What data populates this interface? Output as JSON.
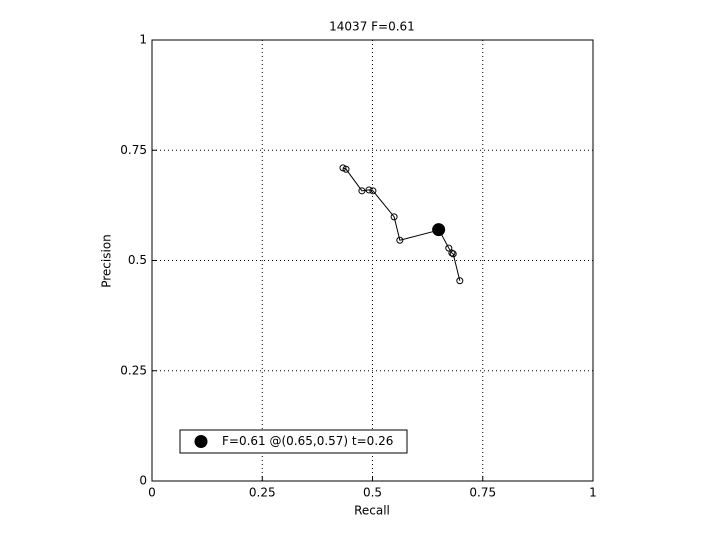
{
  "chart_data": {
    "type": "line",
    "title": "14037 F=0.61",
    "x_label": "Recall",
    "y_label": "Precision",
    "xlim": [
      0,
      1
    ],
    "ylim": [
      0,
      1
    ],
    "xticks": [
      0,
      0.25,
      0.5,
      0.75,
      1
    ],
    "yticks": [
      0,
      0.25,
      0.5,
      0.75,
      1
    ],
    "grid": true,
    "legend_location": "lower left",
    "series": [
      {
        "color": "#000000",
        "x": [
          0.433,
          0.44,
          0.476,
          0.492,
          0.501,
          0.549,
          0.562,
          0.651,
          0.673,
          0.68,
          0.683,
          0.698
        ],
        "values": [
          0.71,
          0.707,
          0.658,
          0.66,
          0.658,
          0.599,
          0.546,
          0.569,
          0.528,
          0.517,
          0.515,
          0.454
        ]
      },
      {
        "name": "F=0.61 @(0.65,0.57) t=0.26",
        "color": "#000000",
        "x": [
          0.65
        ],
        "values": [
          0.57
        ]
      }
    ]
  }
}
